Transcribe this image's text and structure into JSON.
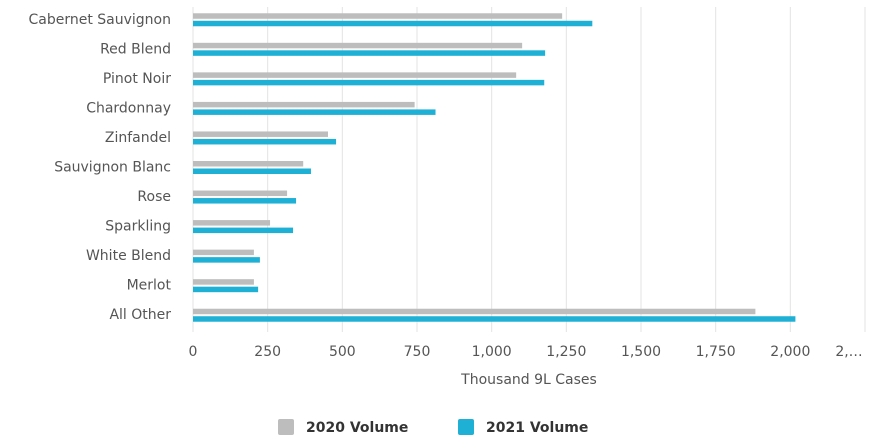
{
  "chart_data": {
    "type": "hbar",
    "categories": [
      "Cabernet Sauvignon",
      "Red Blend",
      "Pinot Noir",
      "Chardonnay",
      "Zinfandel",
      "Sauvignon Blanc",
      "Rose",
      "Sparkling",
      "White Blend",
      "Merlot",
      "All Other"
    ],
    "series": [
      {
        "name": "2020 Volume",
        "color": "#bdbdbd",
        "values": [
          1236,
          1102,
          1082,
          742,
          452,
          369,
          315,
          258,
          204,
          204,
          1883
        ]
      },
      {
        "name": "2021 Volume",
        "color": "#1fb0d6",
        "values": [
          1337,
          1179,
          1176,
          812,
          479,
          395,
          345,
          335,
          224,
          218,
          2017
        ]
      }
    ],
    "xlabel": "Thousand 9L Cases",
    "xlim": [
      0,
      2250
    ],
    "xticks": [
      0,
      250,
      500,
      750,
      {
        "value": 1000,
        "label": "1,000"
      },
      {
        "value": 1250,
        "label": "1,250"
      },
      {
        "value": 1500,
        "label": "1,500"
      },
      {
        "value": 1750,
        "label": "1,750"
      },
      {
        "value": 2000,
        "label": "2,000"
      },
      {
        "value": 2250,
        "label": "2,…"
      }
    ],
    "grid": true,
    "legend": "bottom"
  }
}
